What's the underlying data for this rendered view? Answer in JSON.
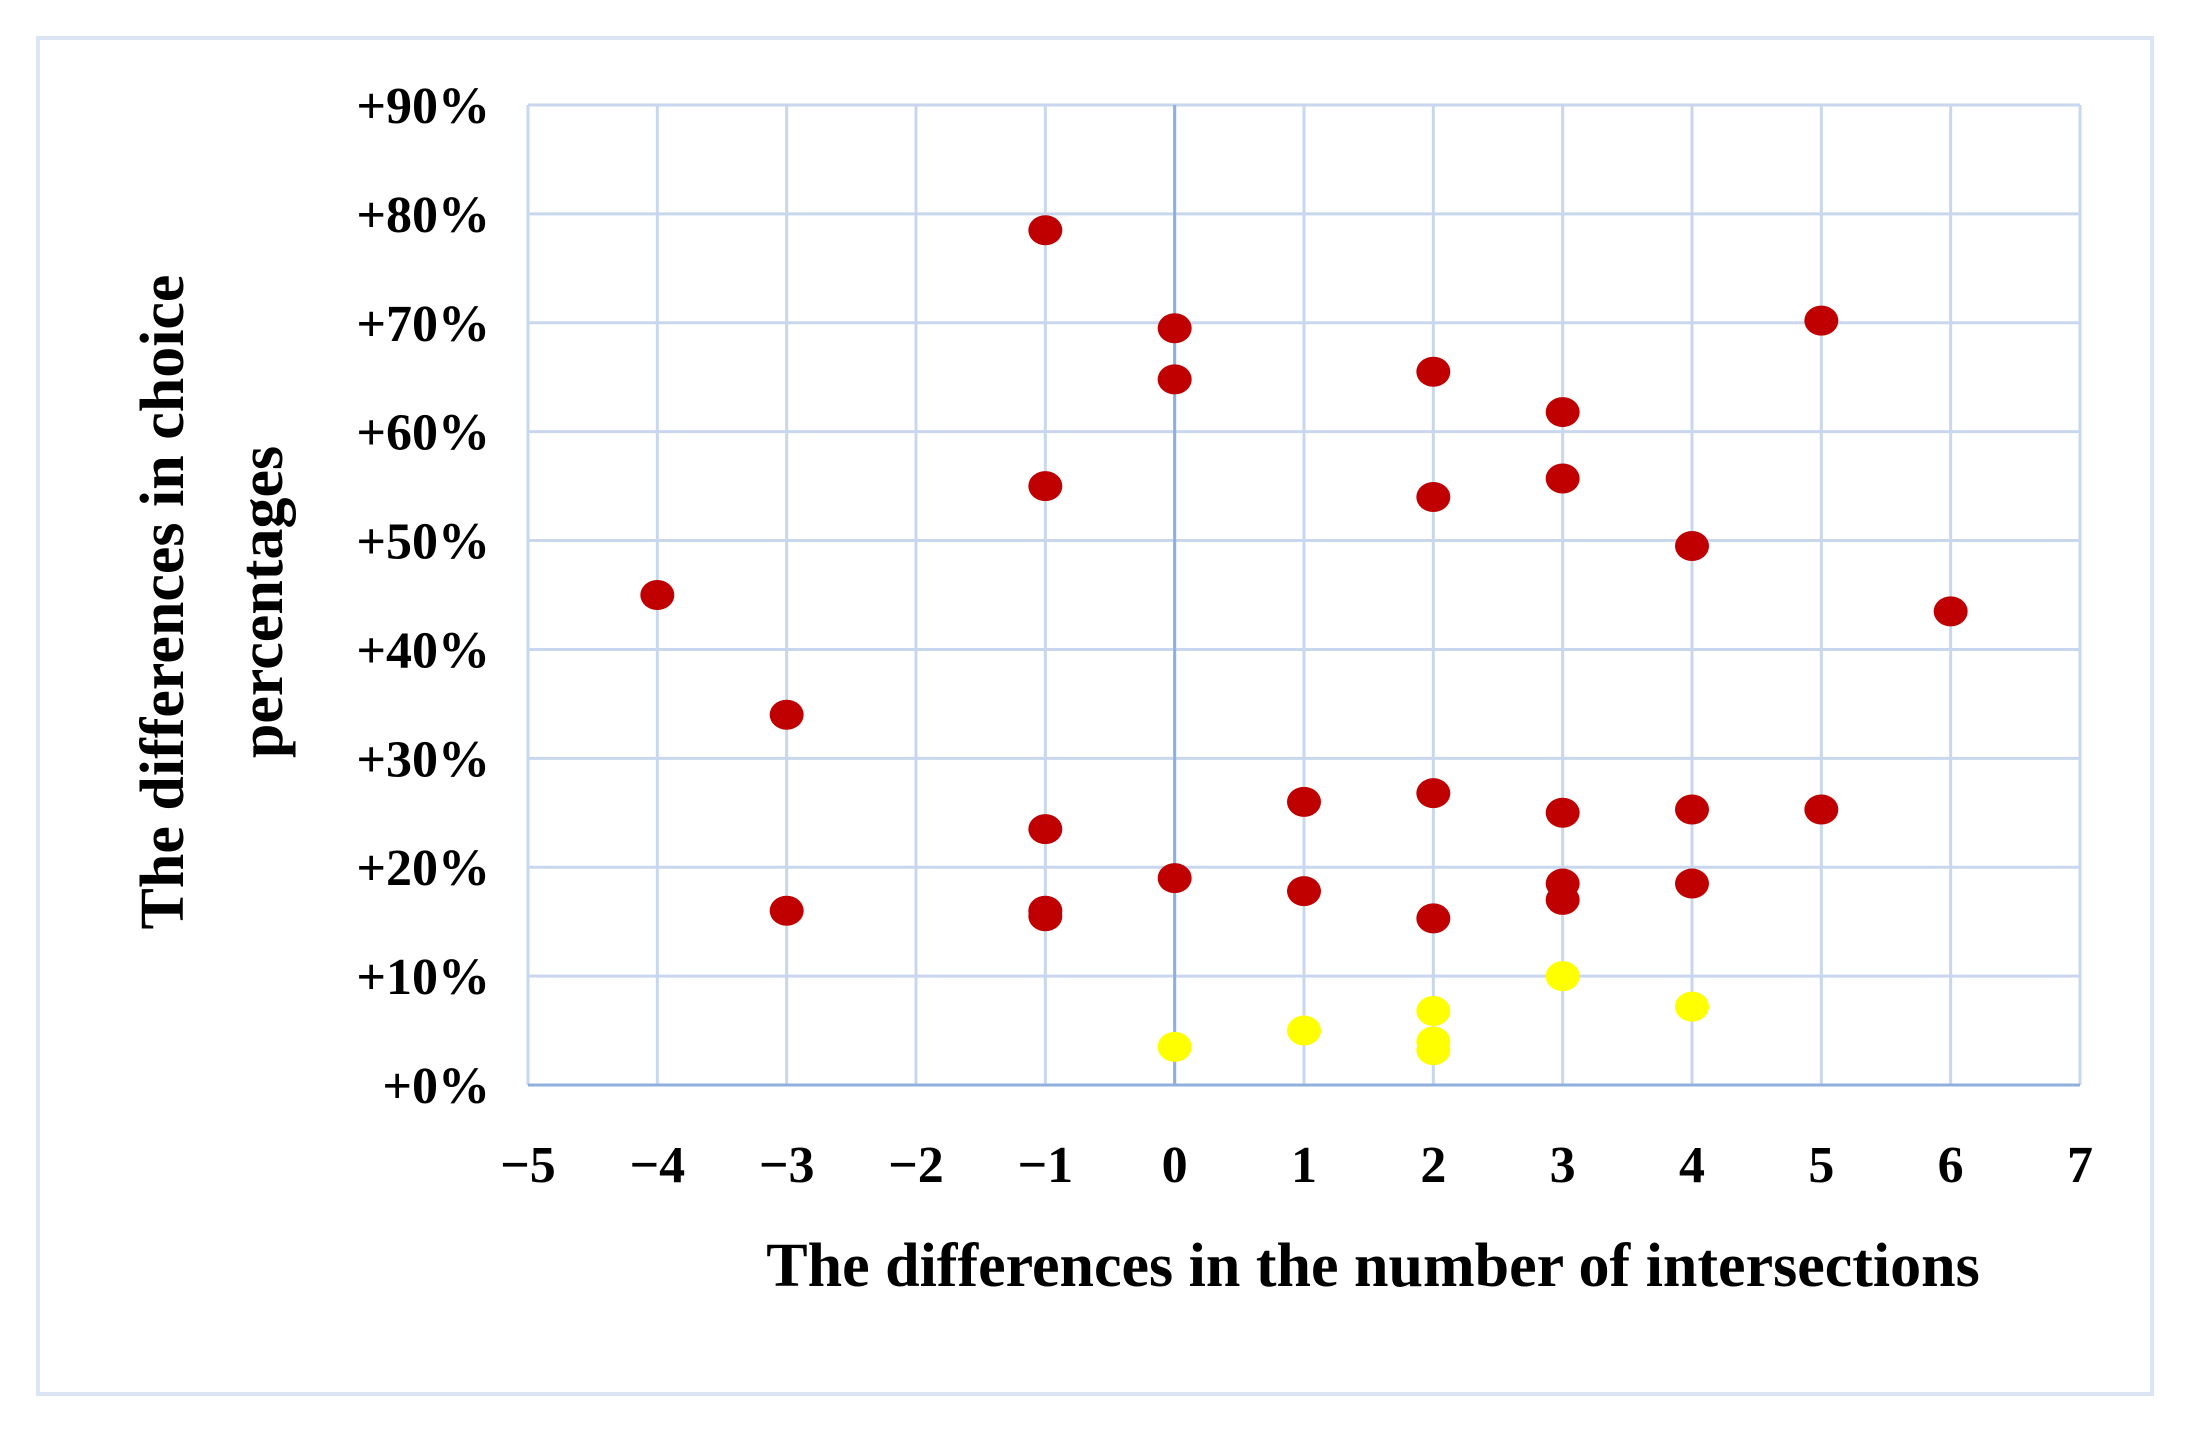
{
  "chart_data": {
    "type": "scatter",
    "xlabel": "The differences in the number of intersections",
    "ylabel": [
      "The differences in choice",
      "percentages"
    ],
    "xlim": [
      -5,
      7
    ],
    "ylim": [
      0,
      90
    ],
    "x_ticks": [
      -5,
      -4,
      -3,
      -2,
      -1,
      0,
      1,
      2,
      3,
      4,
      5,
      6,
      7
    ],
    "x_tick_labels": [
      "−5",
      "−4",
      "−3",
      "−2",
      "−1",
      "0",
      "1",
      "2",
      "3",
      "4",
      "5",
      "6",
      "7"
    ],
    "y_ticks": [
      0,
      10,
      20,
      30,
      40,
      50,
      60,
      70,
      80,
      90
    ],
    "y_tick_labels": [
      "+0%",
      "+10%",
      "+20%",
      "+30%",
      "+40%",
      "+50%",
      "+60%",
      "+70%",
      "+80%",
      "+90%"
    ],
    "grid": true,
    "legend": "none",
    "series": [
      {
        "color": "#c00000",
        "points": [
          {
            "x": -4,
            "y": 45
          },
          {
            "x": -3,
            "y": 34
          },
          {
            "x": -3,
            "y": 16
          },
          {
            "x": -1,
            "y": 78.5
          },
          {
            "x": -1,
            "y": 55
          },
          {
            "x": -1,
            "y": 23.5
          },
          {
            "x": -1,
            "y": 16
          },
          {
            "x": -1,
            "y": 15.5
          },
          {
            "x": 0,
            "y": 69.5
          },
          {
            "x": 0,
            "y": 64.8
          },
          {
            "x": 0,
            "y": 19
          },
          {
            "x": 1,
            "y": 26
          },
          {
            "x": 1,
            "y": 17.8
          },
          {
            "x": 2,
            "y": 65.5
          },
          {
            "x": 2,
            "y": 54
          },
          {
            "x": 2,
            "y": 26.8
          },
          {
            "x": 2,
            "y": 15.3
          },
          {
            "x": 3,
            "y": 61.8
          },
          {
            "x": 3,
            "y": 55.7
          },
          {
            "x": 3,
            "y": 25
          },
          {
            "x": 3,
            "y": 18.5
          },
          {
            "x": 3,
            "y": 17
          },
          {
            "x": 4,
            "y": 49.5
          },
          {
            "x": 4,
            "y": 25.3
          },
          {
            "x": 4,
            "y": 18.5
          },
          {
            "x": 5,
            "y": 70.2
          },
          {
            "x": 5,
            "y": 25.3
          },
          {
            "x": 6,
            "y": 43.5
          }
        ]
      },
      {
        "color": "#ffff00",
        "points": [
          {
            "x": 0,
            "y": 3.5
          },
          {
            "x": 1,
            "y": 5
          },
          {
            "x": 2,
            "y": 6.8
          },
          {
            "x": 2,
            "y": 4
          },
          {
            "x": 2,
            "y": 3.2
          },
          {
            "x": 3,
            "y": 10
          },
          {
            "x": 4,
            "y": 7.2
          }
        ]
      }
    ]
  }
}
